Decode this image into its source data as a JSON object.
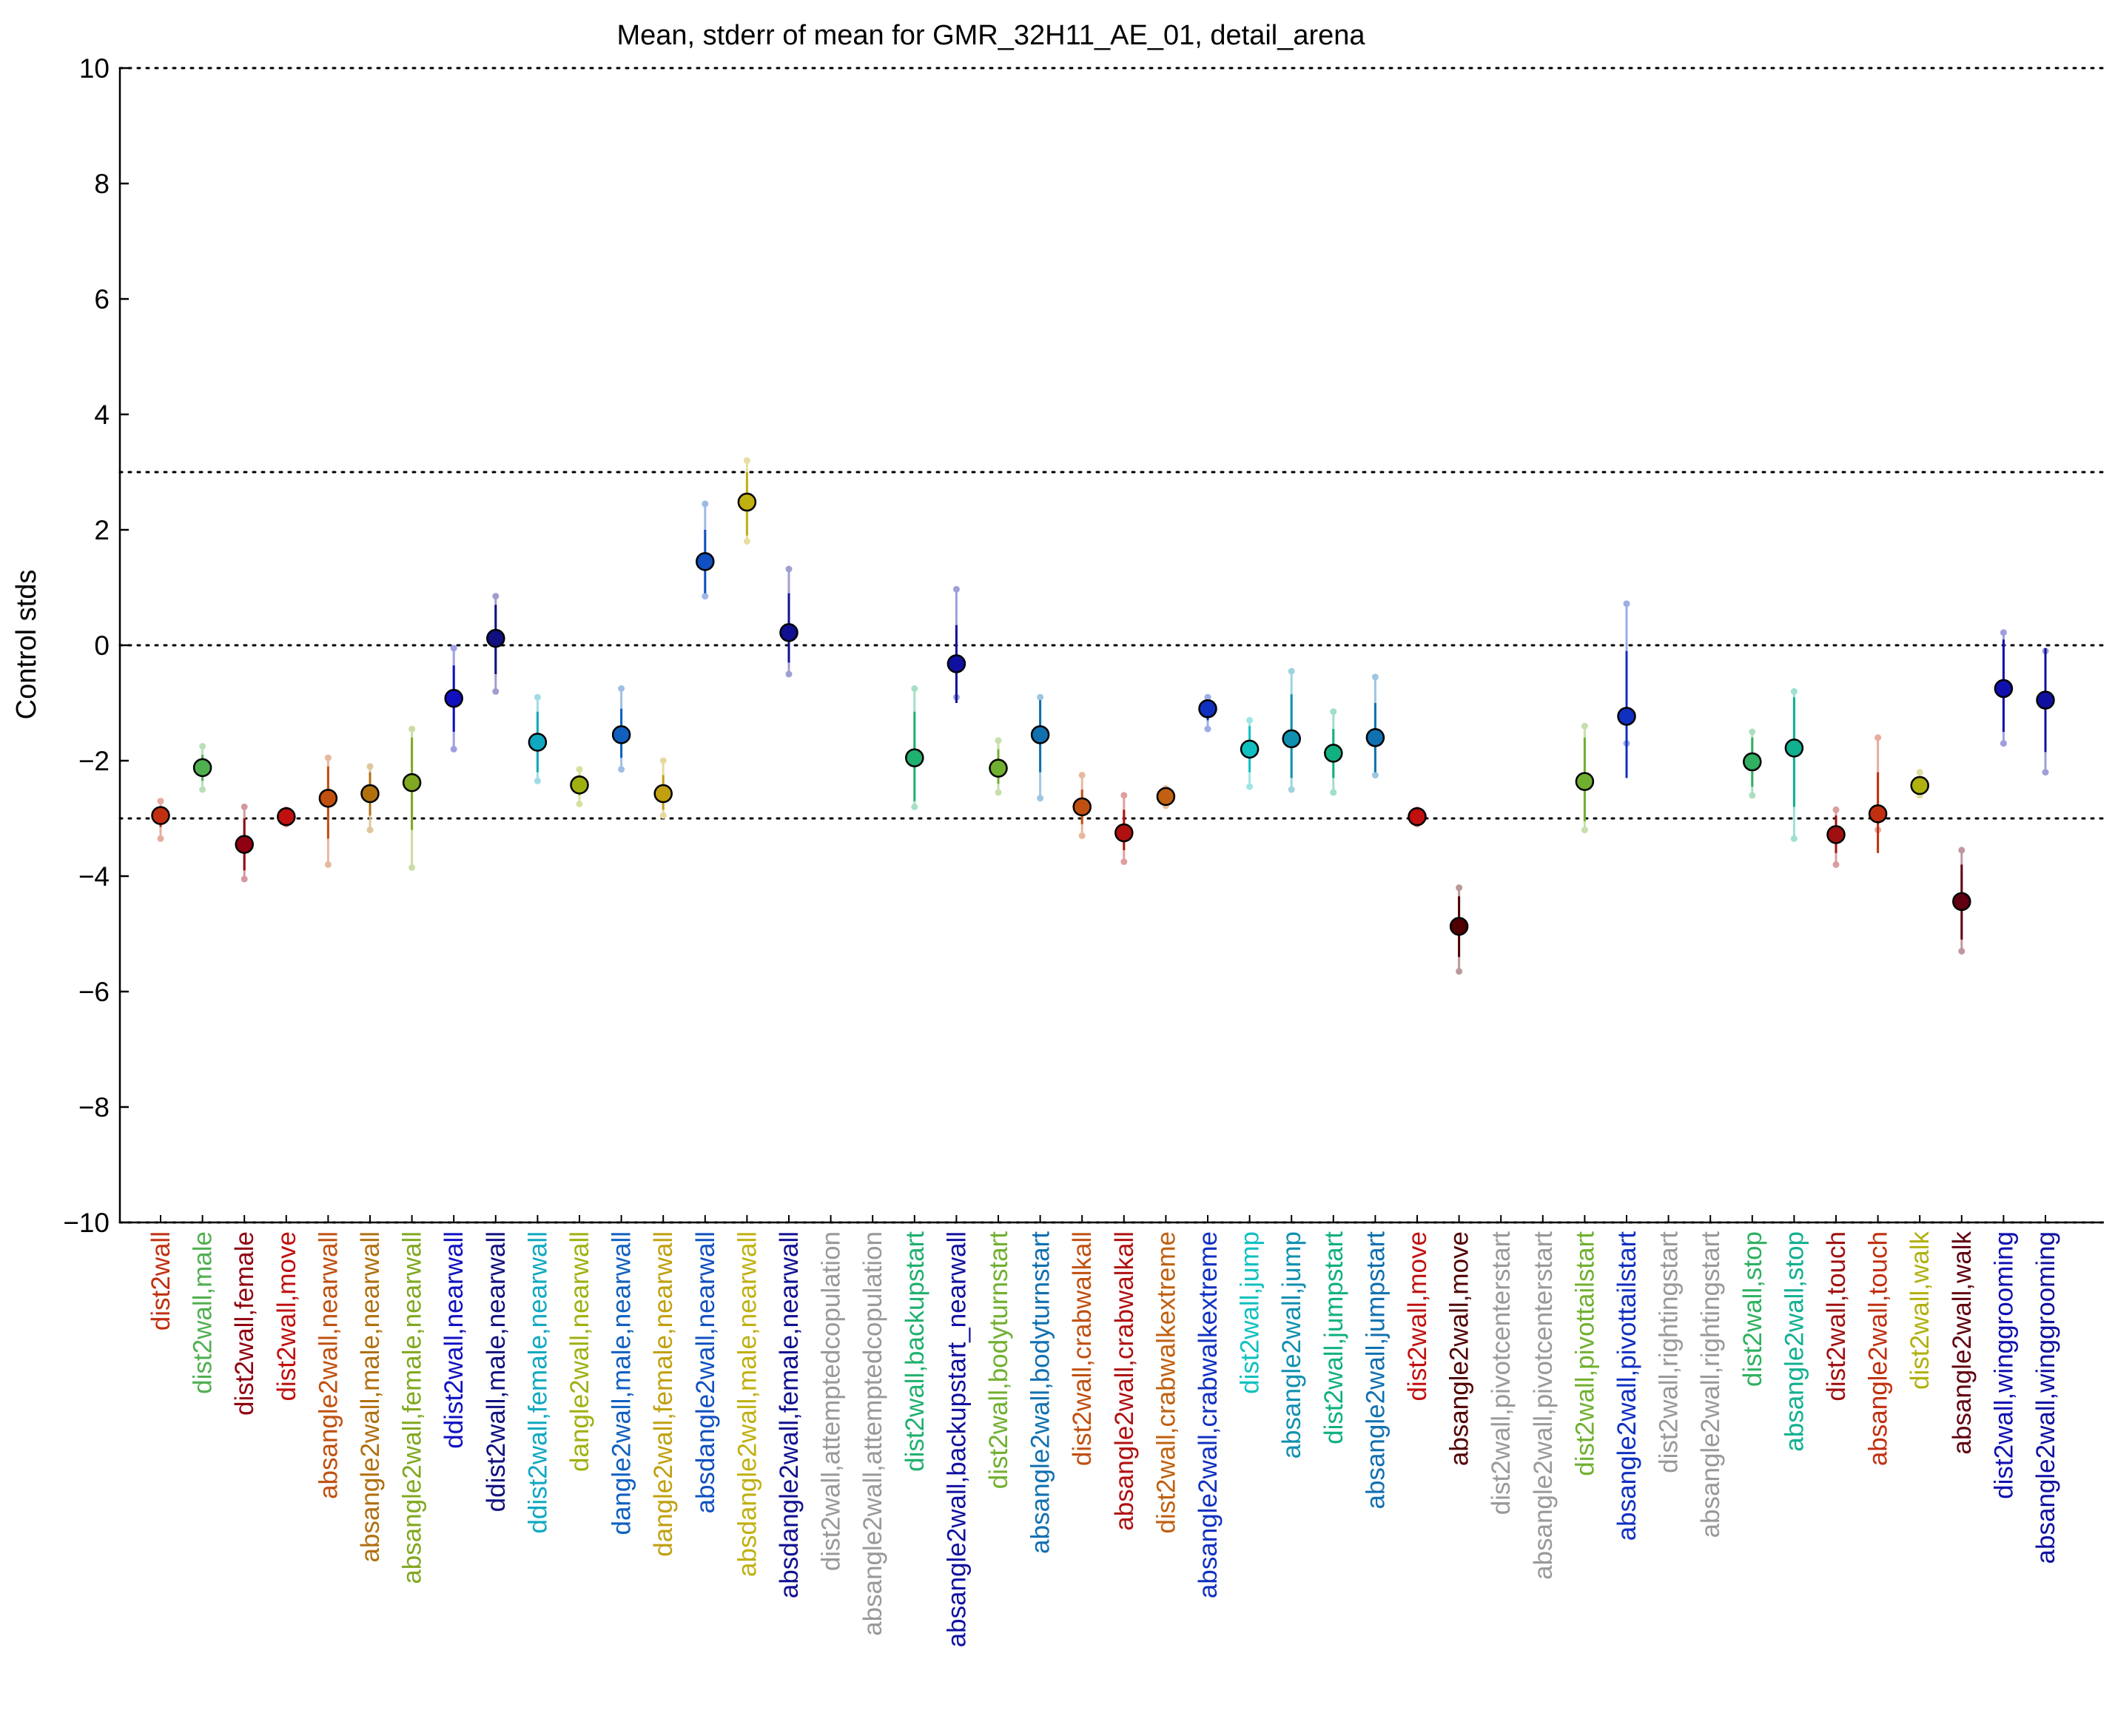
{
  "chart_data": {
    "type": "scatter",
    "title": "Mean, stderr of mean for GMR_32H11_AE_01, detail_arena",
    "xlabel": "",
    "ylabel": "Control stds",
    "ylim": [
      -10,
      10
    ],
    "yticks": [
      -10,
      -8,
      -6,
      -4,
      -2,
      0,
      2,
      4,
      6,
      8,
      10
    ],
    "reference_lines": [
      -10,
      -3,
      0,
      3,
      10
    ],
    "legend": "none",
    "grid": false,
    "points": [
      {
        "label": "dist2wall",
        "color": "#c03010",
        "mean": -2.95,
        "se_lo": -3.15,
        "se_hi": -2.8,
        "range_lo": -3.35,
        "range_hi": -2.7
      },
      {
        "label": "dist2wall,male",
        "color": "#50b050",
        "mean": -2.12,
        "se_lo": -2.35,
        "se_hi": -1.9,
        "range_lo": -2.5,
        "range_hi": -1.75
      },
      {
        "label": "dist2wall,female",
        "color": "#900010",
        "mean": -3.45,
        "se_lo": -3.9,
        "se_hi": -3.0,
        "range_lo": -4.05,
        "range_hi": -2.8
      },
      {
        "label": "dist2wall,move",
        "color": "#c01010",
        "mean": -2.97,
        "se_lo": -3.05,
        "se_hi": -2.9,
        "range_lo": -3.1,
        "range_hi": -2.85
      },
      {
        "label": "absangle2wall,nearwall",
        "color": "#c05010",
        "mean": -2.65,
        "se_lo": -3.35,
        "se_hi": -2.1,
        "range_lo": -3.8,
        "range_hi": -1.95
      },
      {
        "label": "absangle2wall,male,nearwall",
        "color": "#b07010",
        "mean": -2.57,
        "se_lo": -2.95,
        "se_hi": -2.2,
        "range_lo": -3.2,
        "range_hi": -2.1
      },
      {
        "label": "absangle2wall,female,nearwall",
        "color": "#80a820",
        "mean": -2.38,
        "se_lo": -3.2,
        "se_hi": -1.6,
        "range_lo": -3.85,
        "range_hi": -1.45
      },
      {
        "label": "ddist2wall,nearwall",
        "color": "#1010c0",
        "mean": -0.92,
        "se_lo": -1.5,
        "se_hi": -0.35,
        "range_lo": -1.8,
        "range_hi": -0.05
      },
      {
        "label": "ddist2wall,male,nearwall",
        "color": "#101080",
        "mean": 0.12,
        "se_lo": -0.5,
        "se_hi": 0.7,
        "range_lo": -0.8,
        "range_hi": 0.85
      },
      {
        "label": "ddist2wall,female,nearwall",
        "color": "#10a8c0",
        "mean": -1.68,
        "se_lo": -2.2,
        "se_hi": -1.15,
        "range_lo": -2.35,
        "range_hi": -0.9
      },
      {
        "label": "dangle2wall,nearwall",
        "color": "#a0b010",
        "mean": -2.42,
        "se_lo": -2.6,
        "se_hi": -2.25,
        "range_lo": -2.75,
        "range_hi": -2.15
      },
      {
        "label": "dangle2wall,male,nearwall",
        "color": "#1060c0",
        "mean": -1.55,
        "se_lo": -1.95,
        "se_hi": -1.1,
        "range_lo": -2.15,
        "range_hi": -0.75
      },
      {
        "label": "dangle2wall,female,nearwall",
        "color": "#c0a010",
        "mean": -2.57,
        "se_lo": -2.85,
        "se_hi": -2.25,
        "range_lo": -2.95,
        "range_hi": -2.0
      },
      {
        "label": "absdangle2wall,nearwall",
        "color": "#1050c0",
        "mean": 1.45,
        "se_lo": 0.9,
        "se_hi": 2.0,
        "range_lo": 0.85,
        "range_hi": 2.45
      },
      {
        "label": "absdangle2wall,male,nearwall",
        "color": "#c0b010",
        "mean": 2.48,
        "se_lo": 1.9,
        "se_hi": 3.0,
        "range_lo": 1.8,
        "range_hi": 3.2
      },
      {
        "label": "absdangle2wall,female,nearwall",
        "color": "#101090",
        "mean": 0.22,
        "se_lo": -0.3,
        "se_hi": 0.9,
        "range_lo": -0.5,
        "range_hi": 1.32
      },
      {
        "label": "dist2wall,attemptedcopulation",
        "color": "#999999",
        "mean": null
      },
      {
        "label": "absangle2wall,attemptedcopulation",
        "color": "#999999",
        "mean": null
      },
      {
        "label": "dist2wall,backupstart",
        "color": "#20b070",
        "mean": -1.95,
        "se_lo": -2.7,
        "se_hi": -1.15,
        "range_lo": -2.8,
        "range_hi": -0.75
      },
      {
        "label": "absangle2wall,backupstart_nearwall",
        "color": "#1010a0",
        "mean": -0.32,
        "se_lo": -1.0,
        "se_hi": 0.35,
        "range_lo": -0.9,
        "range_hi": 0.97
      },
      {
        "label": "dist2wall,bodyturnstart",
        "color": "#70b030",
        "mean": -2.13,
        "se_lo": -2.4,
        "se_hi": -1.8,
        "range_lo": -2.55,
        "range_hi": -1.65
      },
      {
        "label": "absangle2wall,bodyturnstart",
        "color": "#1070b0",
        "mean": -1.55,
        "se_lo": -2.2,
        "se_hi": -0.95,
        "range_lo": -2.65,
        "range_hi": -0.9
      },
      {
        "label": "dist2wall,crabwalkall",
        "color": "#c05010",
        "mean": -2.8,
        "se_lo": -3.1,
        "se_hi": -2.5,
        "range_lo": -3.3,
        "range_hi": -2.25
      },
      {
        "label": "absangle2wall,crabwalkall",
        "color": "#b01010",
        "mean": -3.25,
        "se_lo": -3.55,
        "se_hi": -2.85,
        "range_lo": -3.75,
        "range_hi": -2.6
      },
      {
        "label": "dist2wall,crabwalkextreme",
        "color": "#c06010",
        "mean": -2.62,
        "se_lo": -2.72,
        "se_hi": -2.52,
        "range_lo": -2.78,
        "range_hi": -2.48
      },
      {
        "label": "absangle2wall,crabwalkextreme",
        "color": "#1030c0",
        "mean": -1.1,
        "se_lo": -1.3,
        "se_hi": -0.95,
        "range_lo": -1.45,
        "range_hi": -0.9
      },
      {
        "label": "dist2wall,jump",
        "color": "#10c0c0",
        "mean": -1.8,
        "se_lo": -2.2,
        "se_hi": -1.4,
        "range_lo": -2.45,
        "range_hi": -1.3
      },
      {
        "label": "absangle2wall,jump",
        "color": "#1090b0",
        "mean": -1.62,
        "se_lo": -2.3,
        "se_hi": -0.85,
        "range_lo": -2.5,
        "range_hi": -0.45
      },
      {
        "label": "dist2wall,jumpstart",
        "color": "#10b080",
        "mean": -1.87,
        "se_lo": -2.3,
        "se_hi": -1.45,
        "range_lo": -2.55,
        "range_hi": -1.15
      },
      {
        "label": "absangle2wall,jumpstart",
        "color": "#1070b0",
        "mean": -1.6,
        "se_lo": -2.2,
        "se_hi": -1.0,
        "range_lo": -2.25,
        "range_hi": -0.55
      },
      {
        "label": "dist2wall,move",
        "color": "#c01010",
        "mean": -2.97,
        "se_lo": -3.05,
        "se_hi": -2.9,
        "range_lo": -3.1,
        "range_hi": -2.85
      },
      {
        "label": "absangle2wall,move",
        "color": "#500000",
        "mean": -4.87,
        "se_lo": -5.4,
        "se_hi": -4.35,
        "range_lo": -5.65,
        "range_hi": -4.2
      },
      {
        "label": "dist2wall,pivotcenterstart",
        "color": "#999999",
        "mean": null
      },
      {
        "label": "absangle2wall,pivotcenterstart",
        "color": "#999999",
        "mean": null
      },
      {
        "label": "dist2wall,pivottailstart",
        "color": "#70b030",
        "mean": -2.36,
        "se_lo": -3.05,
        "se_hi": -1.6,
        "range_lo": -3.2,
        "range_hi": -1.4
      },
      {
        "label": "absangle2wall,pivottailstart",
        "color": "#1030c0",
        "mean": -1.23,
        "se_lo": -2.3,
        "se_hi": -0.1,
        "range_lo": -1.7,
        "range_hi": 0.72
      },
      {
        "label": "dist2wall,rightingstart",
        "color": "#999999",
        "mean": null
      },
      {
        "label": "absangle2wall,rightingstart",
        "color": "#999999",
        "mean": null
      },
      {
        "label": "dist2wall,stop",
        "color": "#30b060",
        "mean": -2.02,
        "se_lo": -2.45,
        "se_hi": -1.6,
        "range_lo": -2.6,
        "range_hi": -1.5
      },
      {
        "label": "absangle2wall,stop",
        "color": "#10b090",
        "mean": -1.78,
        "se_lo": -2.8,
        "se_hi": -0.9,
        "range_lo": -3.35,
        "range_hi": -0.8
      },
      {
        "label": "dist2wall,touch",
        "color": "#a01010",
        "mean": -3.28,
        "se_lo": -3.6,
        "se_hi": -2.95,
        "range_lo": -3.8,
        "range_hi": -2.85
      },
      {
        "label": "absangle2wall,touch",
        "color": "#c03010",
        "mean": -2.92,
        "se_lo": -3.6,
        "se_hi": -2.2,
        "range_lo": -3.2,
        "range_hi": -1.6
      },
      {
        "label": "dist2wall,walk",
        "color": "#b0b010",
        "mean": -2.43,
        "se_lo": -2.55,
        "se_hi": -2.3,
        "range_lo": -2.6,
        "range_hi": -2.2
      },
      {
        "label": "absangle2wall,walk",
        "color": "#600010",
        "mean": -4.44,
        "se_lo": -5.1,
        "se_hi": -3.8,
        "range_lo": -5.3,
        "range_hi": -3.55
      },
      {
        "label": "dist2wall,winggrooming",
        "color": "#1010b0",
        "mean": -0.75,
        "se_lo": -1.5,
        "se_hi": 0.1,
        "range_lo": -1.7,
        "range_hi": 0.22
      },
      {
        "label": "absangle2wall,winggrooming",
        "color": "#1010a0",
        "mean": -0.95,
        "se_lo": -1.85,
        "se_hi": -0.05,
        "range_lo": -2.2,
        "range_hi": -0.1
      }
    ]
  }
}
